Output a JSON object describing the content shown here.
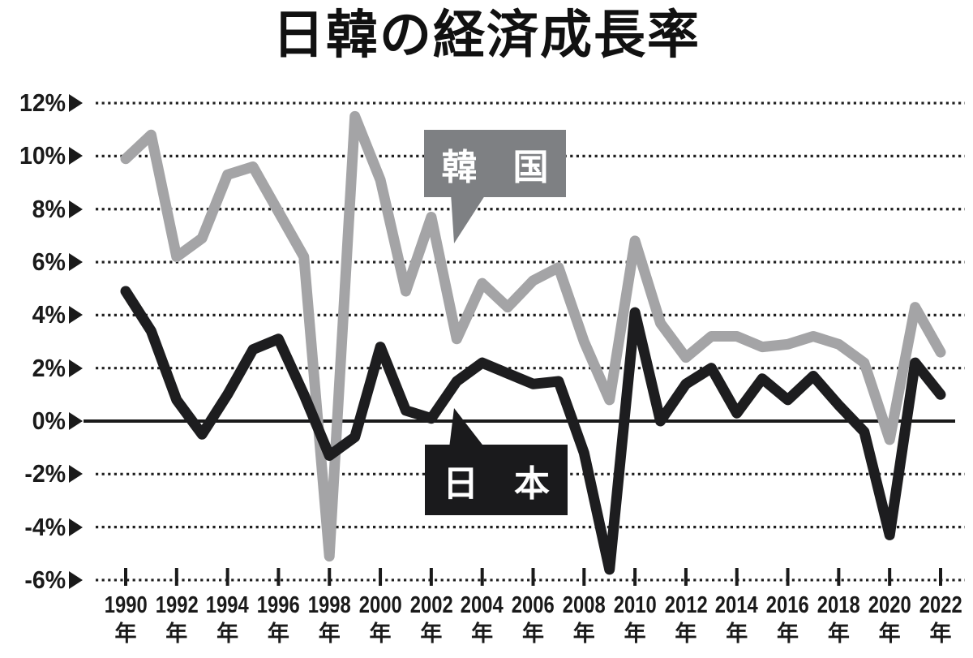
{
  "title": "日韓の経済成長率",
  "colors": {
    "background": "#ffffff",
    "korea_line": "#a4a4a6",
    "japan_line": "#1d1d1f",
    "korea_bubble": "#7e8083",
    "japan_bubble": "#1a1a1c",
    "grid": "#1f1f1f",
    "zero_line": "#1a1a1a"
  },
  "y_axis": {
    "tick_labels": [
      "12%",
      "10%",
      "8%",
      "6%",
      "4%",
      "2%",
      "0%",
      "-2%",
      "-4%",
      "-6%"
    ],
    "values": [
      12,
      10,
      8,
      6,
      4,
      2,
      0,
      -2,
      -4,
      -6
    ],
    "arrow_glyph": "▶"
  },
  "x_axis": {
    "years": [
      "1990",
      "1992",
      "1994",
      "1996",
      "1998",
      "2000",
      "2002",
      "2004",
      "2006",
      "2008",
      "2010",
      "2012",
      "2014",
      "2016",
      "2018",
      "2020",
      "2022"
    ],
    "year_suffix": "年"
  },
  "legend": {
    "korea_label": "韓　国",
    "japan_label": "日　本"
  },
  "chart_data": {
    "type": "line",
    "title": "日韓の経済成長率",
    "xlabel": "",
    "ylabel": "",
    "ylim": [
      -6,
      12
    ],
    "xlim": [
      1990,
      2022
    ],
    "grid": true,
    "grid_style": "dotted",
    "legend_position": "inline-callouts",
    "x": [
      1990,
      1991,
      1992,
      1993,
      1994,
      1995,
      1996,
      1997,
      1998,
      1999,
      2000,
      2001,
      2002,
      2003,
      2004,
      2005,
      2006,
      2007,
      2008,
      2009,
      2010,
      2011,
      2012,
      2013,
      2014,
      2015,
      2016,
      2017,
      2018,
      2019,
      2020,
      2021,
      2022
    ],
    "series": [
      {
        "name": "韓国",
        "color": "#a4a4a6",
        "values": [
          9.9,
          10.8,
          6.2,
          6.9,
          9.3,
          9.6,
          7.9,
          6.2,
          -5.1,
          11.5,
          9.1,
          4.9,
          7.7,
          3.1,
          5.2,
          4.3,
          5.3,
          5.8,
          3.0,
          0.8,
          6.8,
          3.7,
          2.4,
          3.2,
          3.2,
          2.8,
          2.9,
          3.2,
          2.9,
          2.2,
          -0.7,
          4.3,
          2.6
        ]
      },
      {
        "name": "日本",
        "color": "#1d1d1f",
        "values": [
          4.9,
          3.4,
          0.8,
          -0.5,
          1.0,
          2.7,
          3.1,
          1.0,
          -1.3,
          -0.6,
          2.8,
          0.4,
          0.1,
          1.5,
          2.2,
          1.8,
          1.4,
          1.5,
          -1.2,
          -5.6,
          4.1,
          0.0,
          1.4,
          2.0,
          0.3,
          1.6,
          0.8,
          1.7,
          0.6,
          -0.4,
          -4.3,
          2.2,
          1.0
        ]
      }
    ]
  }
}
